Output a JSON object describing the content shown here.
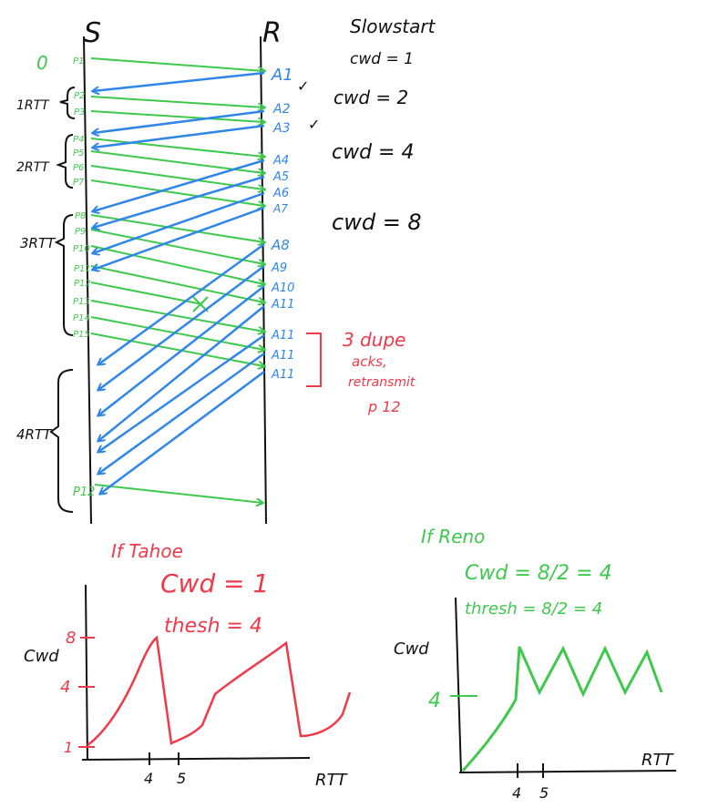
{
  "colors": {
    "ink": "#111111",
    "green": "#3ec94e",
    "blue": "#2f86e8",
    "red": "#f03a4a",
    "background": "#ffffff"
  },
  "sequence": {
    "sender_label": "S",
    "receiver_label": "R",
    "zero_label": "0",
    "rtt_labels": [
      "1RTT",
      "2RTT",
      "3RTT",
      "4RTT"
    ],
    "slowstart": "Slowstart",
    "cwnd_notes": [
      "cwd = 1",
      "cwd = 2",
      "cwd = 4",
      "cwd = 8"
    ],
    "packets": [
      "P1",
      "P2",
      "P3",
      "P4",
      "P5",
      "P6",
      "P7",
      "P8",
      "P9",
      "P10",
      "P11",
      "P12",
      "P13",
      "P14",
      "P15",
      "P12"
    ],
    "acks": [
      "A1",
      "A2",
      "A3",
      "A4",
      "A5",
      "A6",
      "A7",
      "A8",
      "A9",
      "A10",
      "A11",
      "A11",
      "A11",
      "A11"
    ],
    "checks": [
      "✓",
      "✓"
    ],
    "dup_note": [
      "3 dupe",
      "acks,",
      "retransmit",
      "p 12"
    ]
  },
  "tahoe": {
    "title": "If Tahoe",
    "cwnd": "Cwd = 1",
    "thresh": "thesh = 4",
    "ylabel": "Cwd",
    "yticks": [
      "8",
      "4",
      "1"
    ],
    "xticks": [
      "4",
      "5"
    ],
    "xlabel": "RTT"
  },
  "reno": {
    "title": "If Reno",
    "cwnd": "Cwd = 8/2 = 4",
    "thresh": "thresh = 8/2 = 4",
    "ylabel": "Cwd",
    "yticks": [
      "4"
    ],
    "xticks": [
      "4",
      "5"
    ],
    "xlabel": "RTT"
  }
}
